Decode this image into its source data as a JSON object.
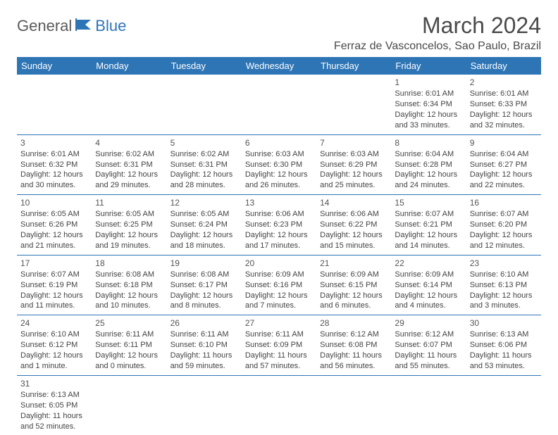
{
  "logo": {
    "part1": "General",
    "part2": "Blue"
  },
  "title": "March 2024",
  "location": "Ferraz de Vasconcelos, Sao Paulo, Brazil",
  "colors": {
    "header_bg": "#2e75b6",
    "header_text": "#ffffff",
    "cell_border": "#2e75b6",
    "text": "#444444",
    "logo_gray": "#5a5a5a",
    "logo_blue": "#2e75b6"
  },
  "weekdays": [
    "Sunday",
    "Monday",
    "Tuesday",
    "Wednesday",
    "Thursday",
    "Friday",
    "Saturday"
  ],
  "weeks": [
    [
      null,
      null,
      null,
      null,
      null,
      {
        "day": "1",
        "sunrise": "Sunrise: 6:01 AM",
        "sunset": "Sunset: 6:34 PM",
        "daylight": "Daylight: 12 hours and 33 minutes."
      },
      {
        "day": "2",
        "sunrise": "Sunrise: 6:01 AM",
        "sunset": "Sunset: 6:33 PM",
        "daylight": "Daylight: 12 hours and 32 minutes."
      }
    ],
    [
      {
        "day": "3",
        "sunrise": "Sunrise: 6:01 AM",
        "sunset": "Sunset: 6:32 PM",
        "daylight": "Daylight: 12 hours and 30 minutes."
      },
      {
        "day": "4",
        "sunrise": "Sunrise: 6:02 AM",
        "sunset": "Sunset: 6:31 PM",
        "daylight": "Daylight: 12 hours and 29 minutes."
      },
      {
        "day": "5",
        "sunrise": "Sunrise: 6:02 AM",
        "sunset": "Sunset: 6:31 PM",
        "daylight": "Daylight: 12 hours and 28 minutes."
      },
      {
        "day": "6",
        "sunrise": "Sunrise: 6:03 AM",
        "sunset": "Sunset: 6:30 PM",
        "daylight": "Daylight: 12 hours and 26 minutes."
      },
      {
        "day": "7",
        "sunrise": "Sunrise: 6:03 AM",
        "sunset": "Sunset: 6:29 PM",
        "daylight": "Daylight: 12 hours and 25 minutes."
      },
      {
        "day": "8",
        "sunrise": "Sunrise: 6:04 AM",
        "sunset": "Sunset: 6:28 PM",
        "daylight": "Daylight: 12 hours and 24 minutes."
      },
      {
        "day": "9",
        "sunrise": "Sunrise: 6:04 AM",
        "sunset": "Sunset: 6:27 PM",
        "daylight": "Daylight: 12 hours and 22 minutes."
      }
    ],
    [
      {
        "day": "10",
        "sunrise": "Sunrise: 6:05 AM",
        "sunset": "Sunset: 6:26 PM",
        "daylight": "Daylight: 12 hours and 21 minutes."
      },
      {
        "day": "11",
        "sunrise": "Sunrise: 6:05 AM",
        "sunset": "Sunset: 6:25 PM",
        "daylight": "Daylight: 12 hours and 19 minutes."
      },
      {
        "day": "12",
        "sunrise": "Sunrise: 6:05 AM",
        "sunset": "Sunset: 6:24 PM",
        "daylight": "Daylight: 12 hours and 18 minutes."
      },
      {
        "day": "13",
        "sunrise": "Sunrise: 6:06 AM",
        "sunset": "Sunset: 6:23 PM",
        "daylight": "Daylight: 12 hours and 17 minutes."
      },
      {
        "day": "14",
        "sunrise": "Sunrise: 6:06 AM",
        "sunset": "Sunset: 6:22 PM",
        "daylight": "Daylight: 12 hours and 15 minutes."
      },
      {
        "day": "15",
        "sunrise": "Sunrise: 6:07 AM",
        "sunset": "Sunset: 6:21 PM",
        "daylight": "Daylight: 12 hours and 14 minutes."
      },
      {
        "day": "16",
        "sunrise": "Sunrise: 6:07 AM",
        "sunset": "Sunset: 6:20 PM",
        "daylight": "Daylight: 12 hours and 12 minutes."
      }
    ],
    [
      {
        "day": "17",
        "sunrise": "Sunrise: 6:07 AM",
        "sunset": "Sunset: 6:19 PM",
        "daylight": "Daylight: 12 hours and 11 minutes."
      },
      {
        "day": "18",
        "sunrise": "Sunrise: 6:08 AM",
        "sunset": "Sunset: 6:18 PM",
        "daylight": "Daylight: 12 hours and 10 minutes."
      },
      {
        "day": "19",
        "sunrise": "Sunrise: 6:08 AM",
        "sunset": "Sunset: 6:17 PM",
        "daylight": "Daylight: 12 hours and 8 minutes."
      },
      {
        "day": "20",
        "sunrise": "Sunrise: 6:09 AM",
        "sunset": "Sunset: 6:16 PM",
        "daylight": "Daylight: 12 hours and 7 minutes."
      },
      {
        "day": "21",
        "sunrise": "Sunrise: 6:09 AM",
        "sunset": "Sunset: 6:15 PM",
        "daylight": "Daylight: 12 hours and 6 minutes."
      },
      {
        "day": "22",
        "sunrise": "Sunrise: 6:09 AM",
        "sunset": "Sunset: 6:14 PM",
        "daylight": "Daylight: 12 hours and 4 minutes."
      },
      {
        "day": "23",
        "sunrise": "Sunrise: 6:10 AM",
        "sunset": "Sunset: 6:13 PM",
        "daylight": "Daylight: 12 hours and 3 minutes."
      }
    ],
    [
      {
        "day": "24",
        "sunrise": "Sunrise: 6:10 AM",
        "sunset": "Sunset: 6:12 PM",
        "daylight": "Daylight: 12 hours and 1 minute."
      },
      {
        "day": "25",
        "sunrise": "Sunrise: 6:11 AM",
        "sunset": "Sunset: 6:11 PM",
        "daylight": "Daylight: 12 hours and 0 minutes."
      },
      {
        "day": "26",
        "sunrise": "Sunrise: 6:11 AM",
        "sunset": "Sunset: 6:10 PM",
        "daylight": "Daylight: 11 hours and 59 minutes."
      },
      {
        "day": "27",
        "sunrise": "Sunrise: 6:11 AM",
        "sunset": "Sunset: 6:09 PM",
        "daylight": "Daylight: 11 hours and 57 minutes."
      },
      {
        "day": "28",
        "sunrise": "Sunrise: 6:12 AM",
        "sunset": "Sunset: 6:08 PM",
        "daylight": "Daylight: 11 hours and 56 minutes."
      },
      {
        "day": "29",
        "sunrise": "Sunrise: 6:12 AM",
        "sunset": "Sunset: 6:07 PM",
        "daylight": "Daylight: 11 hours and 55 minutes."
      },
      {
        "day": "30",
        "sunrise": "Sunrise: 6:13 AM",
        "sunset": "Sunset: 6:06 PM",
        "daylight": "Daylight: 11 hours and 53 minutes."
      }
    ],
    [
      {
        "day": "31",
        "sunrise": "Sunrise: 6:13 AM",
        "sunset": "Sunset: 6:05 PM",
        "daylight": "Daylight: 11 hours and 52 minutes."
      },
      null,
      null,
      null,
      null,
      null,
      null
    ]
  ]
}
